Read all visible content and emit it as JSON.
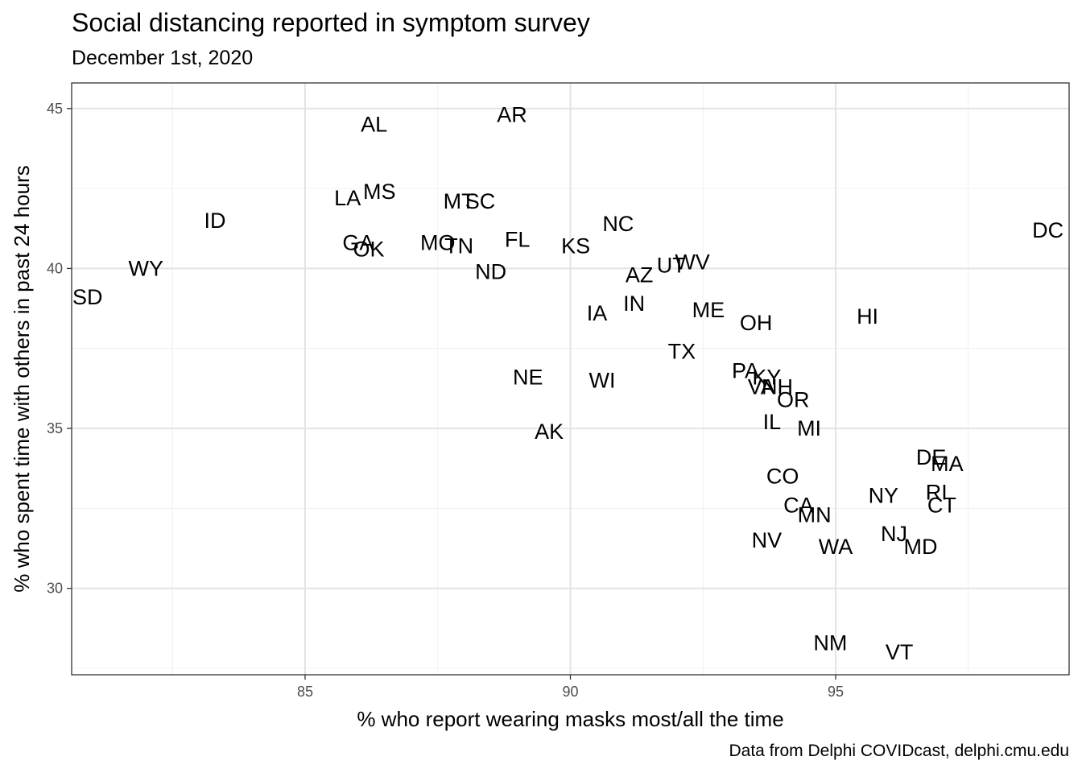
{
  "chart_data": {
    "type": "scatter",
    "title": "Social distancing reported in symptom survey",
    "subtitle": "December 1st, 2020",
    "caption": "Data from Delphi COVIDcast, delphi.cmu.edu",
    "xlabel": "% who report wearing masks most/all the time",
    "ylabel": "% who spent time with others in past 24 hours",
    "xlim": [
      80.6,
      99.4
    ],
    "ylim": [
      27.3,
      45.8
    ],
    "x_ticks": [
      85,
      90,
      95
    ],
    "y_ticks": [
      30,
      35,
      40,
      45
    ],
    "grid": true,
    "points": [
      {
        "label": "AL",
        "x": 86.3,
        "y": 44.5
      },
      {
        "label": "AR",
        "x": 88.9,
        "y": 44.8
      },
      {
        "label": "LA",
        "x": 85.8,
        "y": 42.2
      },
      {
        "label": "MS",
        "x": 86.4,
        "y": 42.4
      },
      {
        "label": "MT",
        "x": 87.9,
        "y": 42.1
      },
      {
        "label": "SC",
        "x": 88.3,
        "y": 42.1
      },
      {
        "label": "ID",
        "x": 83.3,
        "y": 41.5
      },
      {
        "label": "NC",
        "x": 90.9,
        "y": 41.4
      },
      {
        "label": "DC",
        "x": 99.0,
        "y": 41.2
      },
      {
        "label": "GA",
        "x": 86.0,
        "y": 40.8
      },
      {
        "label": "OK",
        "x": 86.2,
        "y": 40.6
      },
      {
        "label": "MO",
        "x": 87.5,
        "y": 40.8
      },
      {
        "label": "TN",
        "x": 87.9,
        "y": 40.7
      },
      {
        "label": "FL",
        "x": 89.0,
        "y": 40.9
      },
      {
        "label": "KS",
        "x": 90.1,
        "y": 40.7
      },
      {
        "label": "WY",
        "x": 82.0,
        "y": 40.0
      },
      {
        "label": "UT",
        "x": 91.9,
        "y": 40.1
      },
      {
        "label": "WV",
        "x": 92.3,
        "y": 40.2
      },
      {
        "label": "ND",
        "x": 88.5,
        "y": 39.9
      },
      {
        "label": "AZ",
        "x": 91.3,
        "y": 39.8
      },
      {
        "label": "SD",
        "x": 80.9,
        "y": 39.1
      },
      {
        "label": "IN",
        "x": 91.2,
        "y": 38.9
      },
      {
        "label": "ME",
        "x": 92.6,
        "y": 38.7
      },
      {
        "label": "IA",
        "x": 90.5,
        "y": 38.6
      },
      {
        "label": "OH",
        "x": 93.5,
        "y": 38.3
      },
      {
        "label": "HI",
        "x": 95.6,
        "y": 38.5
      },
      {
        "label": "TX",
        "x": 92.1,
        "y": 37.4
      },
      {
        "label": "PA",
        "x": 93.3,
        "y": 36.8
      },
      {
        "label": "KY",
        "x": 93.7,
        "y": 36.6
      },
      {
        "label": "VA",
        "x": 93.6,
        "y": 36.3
      },
      {
        "label": "NH",
        "x": 93.9,
        "y": 36.3
      },
      {
        "label": "NE",
        "x": 89.2,
        "y": 36.6
      },
      {
        "label": "WI",
        "x": 90.6,
        "y": 36.5
      },
      {
        "label": "OR",
        "x": 94.2,
        "y": 35.9
      },
      {
        "label": "IL",
        "x": 93.8,
        "y": 35.2
      },
      {
        "label": "MI",
        "x": 94.5,
        "y": 35.0
      },
      {
        "label": "AK",
        "x": 89.6,
        "y": 34.9
      },
      {
        "label": "DE",
        "x": 96.8,
        "y": 34.1
      },
      {
        "label": "MA",
        "x": 97.1,
        "y": 33.9
      },
      {
        "label": "CO",
        "x": 94.0,
        "y": 33.5
      },
      {
        "label": "NY",
        "x": 95.9,
        "y": 32.9
      },
      {
        "label": "RI",
        "x": 96.9,
        "y": 33.0
      },
      {
        "label": "CT",
        "x": 97.0,
        "y": 32.6
      },
      {
        "label": "CA",
        "x": 94.3,
        "y": 32.6
      },
      {
        "label": "MN",
        "x": 94.6,
        "y": 32.3
      },
      {
        "label": "NV",
        "x": 93.7,
        "y": 31.5
      },
      {
        "label": "NJ",
        "x": 96.1,
        "y": 31.7
      },
      {
        "label": "WA",
        "x": 95.0,
        "y": 31.3
      },
      {
        "label": "MD",
        "x": 96.6,
        "y": 31.3
      },
      {
        "label": "NM",
        "x": 94.9,
        "y": 28.3
      },
      {
        "label": "VT",
        "x": 96.2,
        "y": 28.0
      }
    ]
  }
}
